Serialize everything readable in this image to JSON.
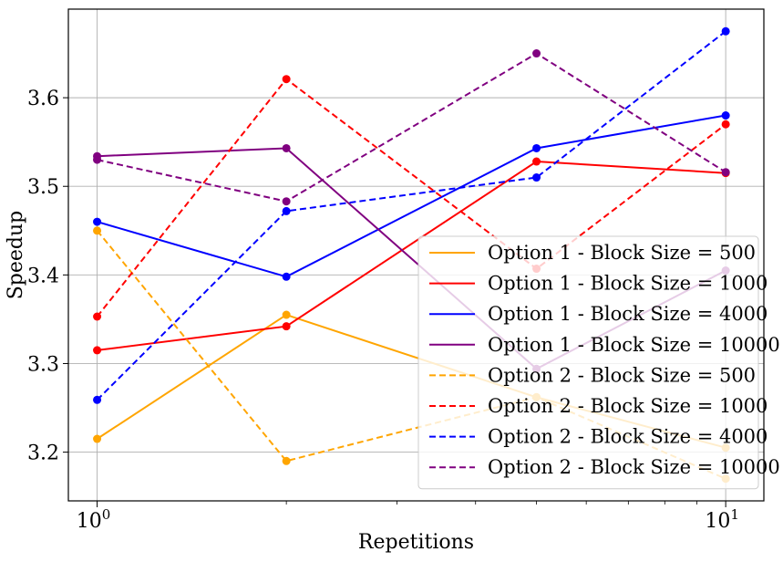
{
  "chart_data": {
    "type": "line",
    "xlabel": "Repetitions",
    "ylabel": "Speedup",
    "xscale": "log",
    "xlim": [
      0.9,
      11.5
    ],
    "ylim": [
      3.145,
      3.7
    ],
    "x": [
      1,
      2,
      5,
      10
    ],
    "x_major_ticks": [
      {
        "value": 1,
        "base": "10",
        "exp": "0"
      },
      {
        "value": 10,
        "base": "10",
        "exp": "1"
      }
    ],
    "x_minor_ticks": [
      2,
      3,
      4,
      5,
      6,
      7,
      8,
      9
    ],
    "y_ticks": [
      {
        "value": 3.2,
        "label": "3.2"
      },
      {
        "value": 3.3,
        "label": "3.3"
      },
      {
        "value": 3.4,
        "label": "3.4"
      },
      {
        "value": 3.5,
        "label": "3.5"
      },
      {
        "value": 3.6,
        "label": "3.6"
      }
    ],
    "grid": true,
    "legend_position": "lower-right",
    "series": [
      {
        "name": "Option 1 - Block Size = 500",
        "color": "#FFA500",
        "dash": "solid",
        "values": [
          3.215,
          3.355,
          3.262,
          3.205
        ]
      },
      {
        "name": "Option 1 - Block Size = 1000",
        "color": "#FF0000",
        "dash": "solid",
        "values": [
          3.315,
          3.342,
          3.528,
          3.515
        ]
      },
      {
        "name": "Option 1 - Block Size = 4000",
        "color": "#0000FF",
        "dash": "solid",
        "values": [
          3.46,
          3.398,
          3.543,
          3.58
        ]
      },
      {
        "name": "Option 1 - Block Size = 10000",
        "color": "#800080",
        "dash": "solid",
        "values": [
          3.534,
          3.543,
          3.294,
          3.405
        ]
      },
      {
        "name": "Option 2 - Block Size = 500",
        "color": "#FFA500",
        "dash": "dashed",
        "values": [
          3.45,
          3.19,
          3.262,
          3.17
        ]
      },
      {
        "name": "Option 2 - Block Size = 1000",
        "color": "#FF0000",
        "dash": "dashed",
        "values": [
          3.353,
          3.621,
          3.407,
          3.57
        ]
      },
      {
        "name": "Option 2 - Block Size = 4000",
        "color": "#0000FF",
        "dash": "dashed",
        "values": [
          3.259,
          3.472,
          3.51,
          3.675
        ]
      },
      {
        "name": "Option 2 - Block Size = 10000",
        "color": "#800080",
        "dash": "dashed",
        "values": [
          3.53,
          3.483,
          3.65,
          3.516
        ]
      }
    ]
  }
}
